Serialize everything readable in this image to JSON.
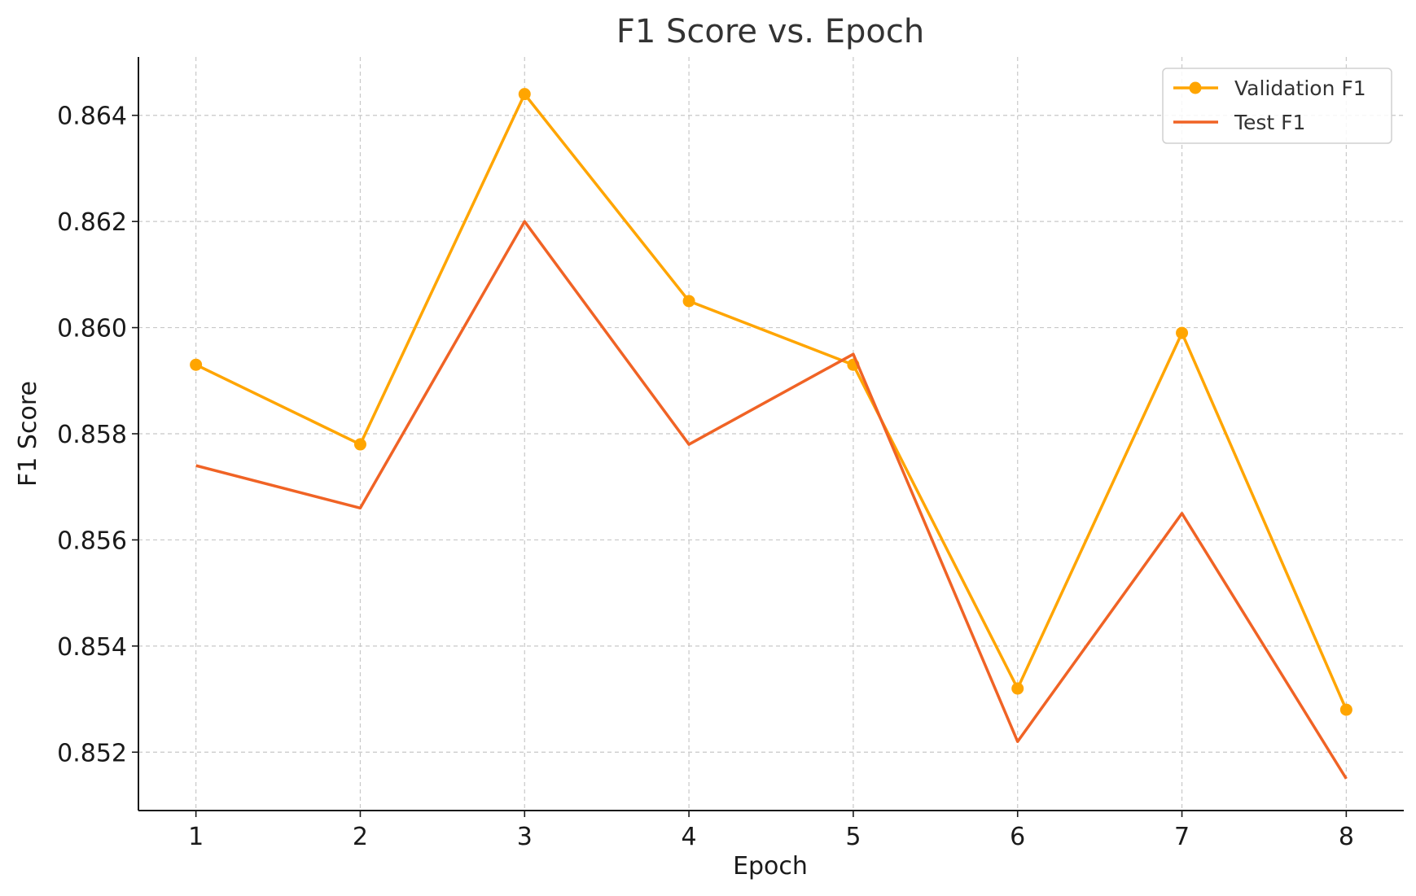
{
  "chart_data": {
    "type": "line",
    "title": "F1 Score vs. Epoch",
    "xlabel": "Epoch",
    "ylabel": "F1 Score",
    "x": [
      1,
      2,
      3,
      4,
      5,
      6,
      7,
      8
    ],
    "xticks": [
      "1",
      "2",
      "3",
      "4",
      "5",
      "6",
      "7",
      "8"
    ],
    "yticks": [
      "0.852",
      "0.854",
      "0.856",
      "0.858",
      "0.860",
      "0.862",
      "0.864"
    ],
    "ytick_values": [
      0.852,
      0.854,
      0.856,
      0.858,
      0.86,
      0.862,
      0.864
    ],
    "xlim": [
      0.65,
      8.35
    ],
    "ylim": [
      0.8509,
      0.8651
    ],
    "grid": true,
    "legend_position": "top-right",
    "series": [
      {
        "name": "Validation F1",
        "color": "#FFA500",
        "marker": "circle",
        "values": [
          0.8593,
          0.8578,
          0.8644,
          0.8605,
          0.8593,
          0.8532,
          0.8599,
          0.8528
        ]
      },
      {
        "name": "Test F1",
        "color": "#F06325",
        "marker": "none",
        "values": [
          0.8574,
          0.8566,
          0.862,
          0.8578,
          0.8595,
          0.8522,
          0.8565,
          0.8515
        ]
      }
    ]
  }
}
